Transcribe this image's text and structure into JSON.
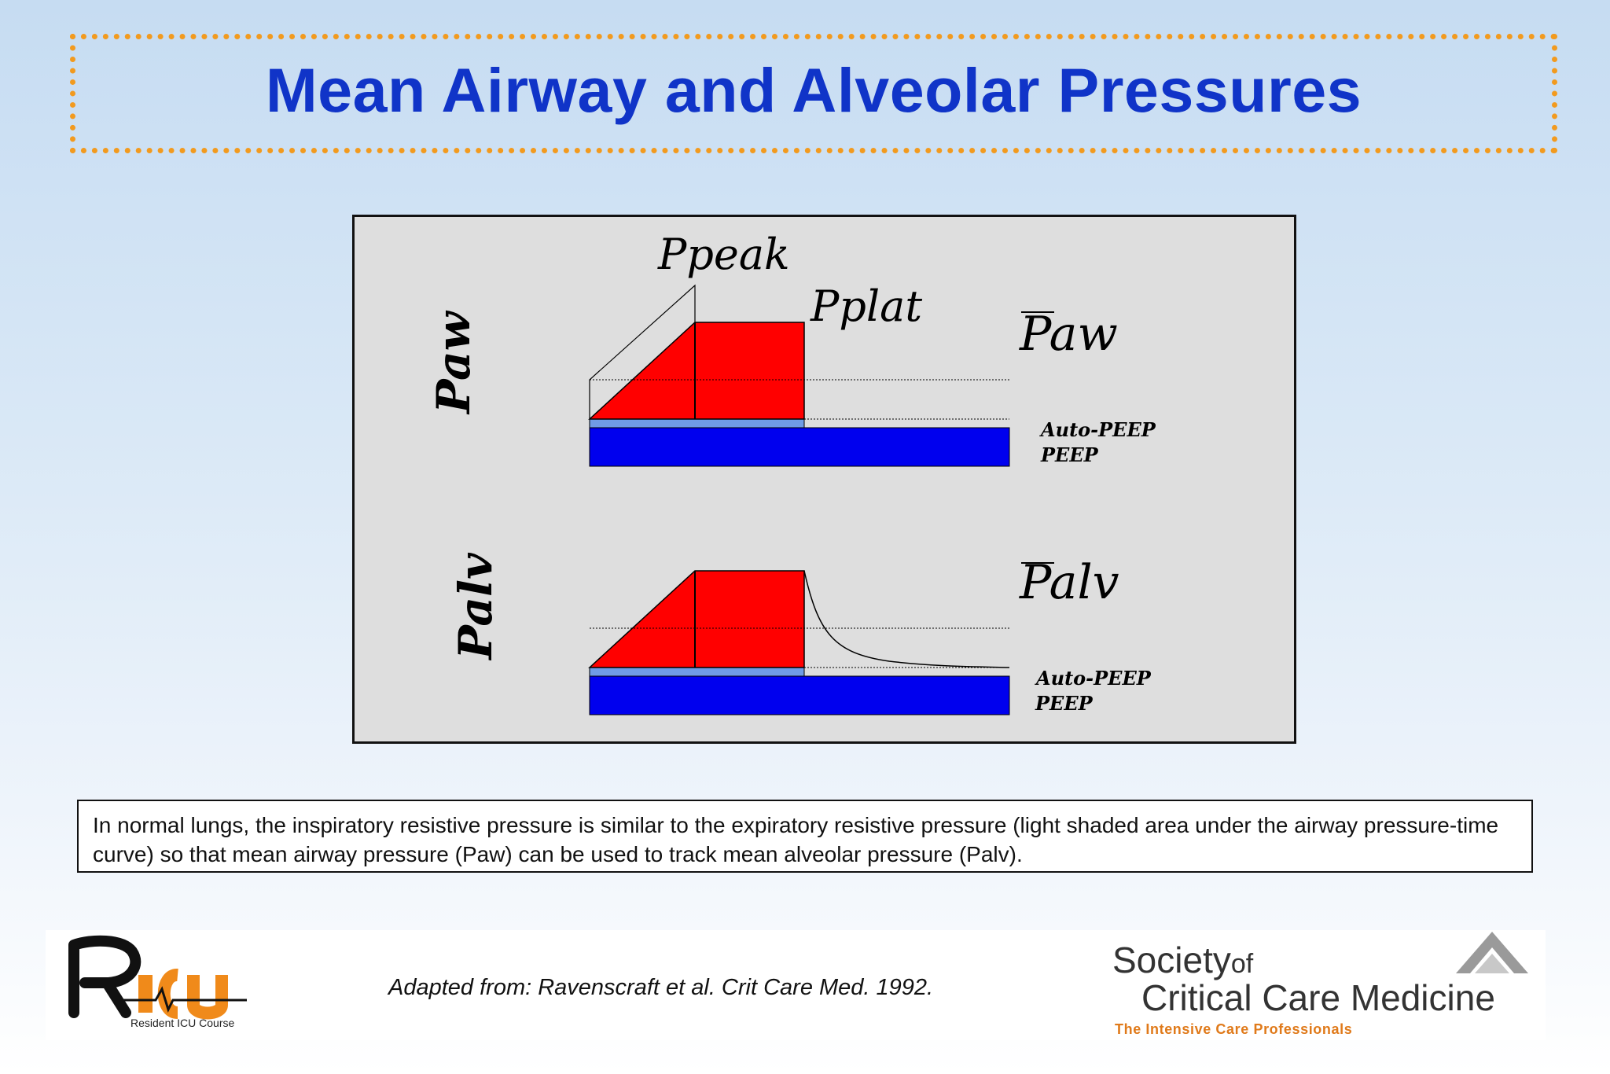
{
  "title": "Mean Airway and Alveolar Pressures",
  "diagram": {
    "top_axis_label": "Paw",
    "bottom_axis_label": "Palv",
    "ppeak_label": "Ppeak",
    "pplat_label": "Pplat",
    "paw_mean_label": "Paw",
    "palv_mean_label": "Palv",
    "top_autopeep": "Auto-PEEP",
    "top_peep": "PEEP",
    "bottom_autopeep": "Auto-PEEP",
    "bottom_peep": "PEEP",
    "colors": {
      "inspiratory": "#ff0000",
      "peep": "#0000ee",
      "autopeep": "#6f9be6",
      "panel": "#dedede"
    }
  },
  "caption": "In normal lungs,  the inspiratory resistive pressure is similar to the expiratory resistive pressure (light shaded area under the airway pressure-time curve) so that mean airway pressure (Paw) can be used to track mean alveolar pressure (Palv).",
  "citation": "Adapted from: Ravenscraft et al. Crit Care Med. 1992.",
  "logo_left": {
    "name": "RICU",
    "subtitle": "Resident ICU Course"
  },
  "logo_right": {
    "line1": "Society",
    "line1_of": "of",
    "line2": "Critical Care Medicine",
    "tagline": "The Intensive Care Professionals"
  }
}
